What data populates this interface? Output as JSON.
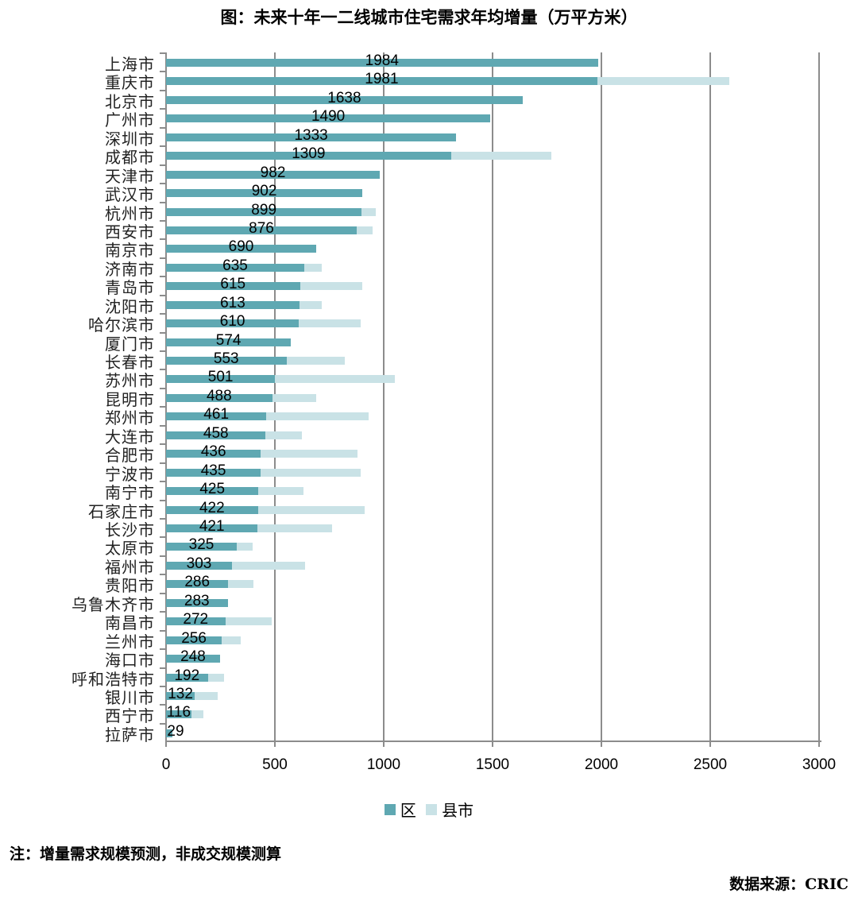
{
  "title": "图：未来十年一二线城市住宅需求年均增量（万平方米）",
  "legend": {
    "district": {
      "label": "区",
      "color": "#5fa8b2"
    },
    "county": {
      "label": "县市",
      "color": "#c9e2e6"
    }
  },
  "note": "注：增量需求规模预测，非成交规模测算",
  "source": "数据来源：CRIC",
  "chart_data": {
    "type": "bar",
    "orientation": "horizontal",
    "stacked": true,
    "title": "图：未来十年一二线城市住宅需求年均增量（万平方米）",
    "xlabel": "",
    "ylabel": "",
    "xlim": [
      0,
      3000
    ],
    "xticks": [
      0,
      500,
      1000,
      1500,
      2000,
      2500,
      3000
    ],
    "grid": "vertical",
    "legend_position": "bottom",
    "categories": [
      "上海市",
      "重庆市",
      "北京市",
      "广州市",
      "深圳市",
      "成都市",
      "天津市",
      "武汉市",
      "杭州市",
      "西安市",
      "南京市",
      "济南市",
      "青岛市",
      "沈阳市",
      "哈尔滨市",
      "厦门市",
      "长春市",
      "苏州市",
      "昆明市",
      "郑州市",
      "大连市",
      "合肥市",
      "宁波市",
      "南宁市",
      "石家庄市",
      "长沙市",
      "太原市",
      "福州市",
      "贵阳市",
      "乌鲁木齐市",
      "南昌市",
      "兰州市",
      "海口市",
      "呼和浩特市",
      "银川市",
      "西宁市",
      "拉萨市"
    ],
    "series": [
      {
        "name": "区",
        "color": "#5fa8b2",
        "labeled": true,
        "values": [
          1984,
          1981,
          1638,
          1490,
          1333,
          1309,
          982,
          902,
          899,
          876,
          690,
          635,
          615,
          613,
          610,
          574,
          553,
          501,
          488,
          461,
          458,
          436,
          435,
          425,
          422,
          421,
          325,
          303,
          286,
          283,
          272,
          256,
          248,
          192,
          132,
          116,
          29
        ]
      },
      {
        "name": "县市",
        "color": "#c9e2e6",
        "labeled": false,
        "values": [
          0,
          607,
          0,
          0,
          0,
          461,
          0,
          0,
          66,
          74,
          0,
          79,
          287,
          101,
          286,
          0,
          267,
          549,
          201,
          469,
          167,
          443,
          458,
          206,
          492,
          340,
          72,
          334,
          117,
          0,
          214,
          86,
          0,
          74,
          105,
          55,
          0
        ]
      }
    ]
  }
}
